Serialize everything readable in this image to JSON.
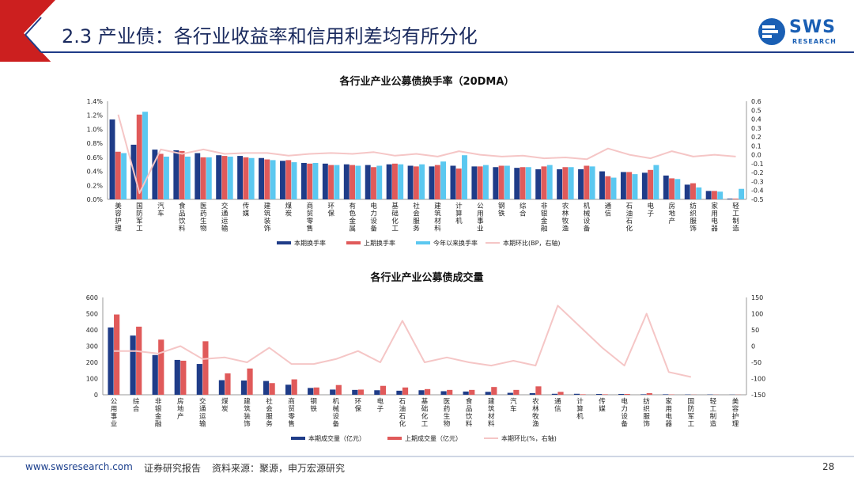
{
  "header": {
    "title": "2.3 产业债：各行业收益率和信用利差均有所分化",
    "logo_name": "SWS",
    "logo_sub": "RESEARCH"
  },
  "footer": {
    "site": "www.swsresearch.com",
    "report_type": "证券研究报告",
    "source": "资料来源：聚源，申万宏源研究",
    "page": "28"
  },
  "colors": {
    "dark_blue": "#1f3c88",
    "red": "#e05a5a",
    "light_blue": "#5bc8f0",
    "pink": "#f5c6c6",
    "title_red": "#cc1f1f"
  },
  "chart_data": [
    {
      "type": "bar",
      "title": "各行业产业公募债换手率（20DMA）",
      "categories": [
        "美容护理",
        "国防军工",
        "汽车",
        "食品饮料",
        "医药生物",
        "交通运输",
        "传媒",
        "建筑装饰",
        "煤炭",
        "商贸零售",
        "环保",
        "有色金属",
        "电力设备",
        "基础化工",
        "社会服务",
        "建筑材料",
        "计算机",
        "公用事业",
        "钢铁",
        "综合",
        "非银金融",
        "农林牧渔",
        "机械设备",
        "通信",
        "石油石化",
        "电子",
        "房地产",
        "纺织服饰",
        "家用电器",
        "轻工制造"
      ],
      "series": [
        {
          "name": "本期换手率",
          "axis": "left",
          "values": [
            1.14,
            0.78,
            0.71,
            0.7,
            0.66,
            0.63,
            0.62,
            0.59,
            0.55,
            0.52,
            0.51,
            0.5,
            0.49,
            0.5,
            0.48,
            0.47,
            0.48,
            0.47,
            0.46,
            0.45,
            0.43,
            0.43,
            0.43,
            0.4,
            0.39,
            0.38,
            0.34,
            0.21,
            0.12,
            0.01
          ]
        },
        {
          "name": "上期换手率",
          "axis": "left",
          "values": [
            0.68,
            1.21,
            0.65,
            0.69,
            0.6,
            0.62,
            0.6,
            0.57,
            0.56,
            0.51,
            0.49,
            0.49,
            0.46,
            0.51,
            0.47,
            0.49,
            0.44,
            0.47,
            0.48,
            0.46,
            0.47,
            0.46,
            0.48,
            0.33,
            0.39,
            0.42,
            0.3,
            0.23,
            0.12,
            0.01
          ]
        },
        {
          "name": "今年以来换手率",
          "axis": "left",
          "values": [
            0.66,
            1.25,
            0.61,
            0.61,
            0.6,
            0.61,
            0.59,
            0.56,
            0.53,
            0.52,
            0.49,
            0.48,
            0.48,
            0.5,
            0.5,
            0.54,
            0.63,
            0.49,
            0.48,
            0.46,
            0.49,
            0.46,
            0.47,
            0.31,
            0.36,
            0.49,
            0.29,
            0.17,
            0.11,
            0.15
          ]
        },
        {
          "name": "本期环比(BP，右轴)",
          "axis": "right",
          "values": [
            0.45,
            -0.43,
            0.06,
            0.01,
            0.06,
            0.01,
            0.02,
            0.02,
            -0.01,
            0.01,
            0.02,
            0.01,
            0.03,
            -0.01,
            0.01,
            -0.02,
            0.04,
            0.0,
            -0.02,
            -0.01,
            -0.04,
            -0.03,
            -0.05,
            0.07,
            0.0,
            -0.04,
            0.04,
            -0.02,
            0.0,
            -0.02
          ]
        }
      ],
      "ylim_left": [
        0,
        1.4
      ],
      "ylim_right": [
        -0.5,
        0.6
      ],
      "left_ticks": [
        "0.0%",
        "0.2%",
        "0.4%",
        "0.6%",
        "0.8%",
        "1.0%",
        "1.2%",
        "1.4%"
      ],
      "right_ticks": [
        "-0.5",
        "-0.4",
        "-0.3",
        "-0.2",
        "-0.1",
        "0.0",
        "0.1",
        "0.2",
        "0.3",
        "0.4",
        "0.5",
        "0.6"
      ]
    },
    {
      "type": "bar",
      "title": "各行业产业公募债成交量",
      "categories": [
        "公用事业",
        "综合",
        "非银金融",
        "房地产",
        "交通运输",
        "煤炭",
        "建筑装饰",
        "社会服务",
        "商贸零售",
        "钢铁",
        "机械设备",
        "环保",
        "电子",
        "石油石化",
        "基础化工",
        "医药生物",
        "食品饮料",
        "建筑材料",
        "汽车",
        "农林牧渔",
        "通信",
        "计算机",
        "传媒",
        "电力设备",
        "纺织服饰",
        "家用电器",
        "国防军工",
        "轻工制造",
        "美容护理"
      ],
      "series": [
        {
          "name": "本期成交量（亿元）",
          "axis": "left",
          "values": [
            415,
            365,
            245,
            215,
            190,
            90,
            88,
            85,
            62,
            42,
            32,
            30,
            28,
            25,
            28,
            22,
            20,
            18,
            12,
            10,
            6,
            6,
            5,
            5,
            3,
            3,
            2,
            2,
            1
          ]
        },
        {
          "name": "上期成交量（亿元）",
          "axis": "left",
          "values": [
            495,
            420,
            340,
            210,
            330,
            132,
            162,
            72,
            95,
            45,
            60,
            32,
            55,
            45,
            35,
            30,
            30,
            48,
            30,
            52,
            18,
            3,
            3,
            5,
            10,
            2,
            1,
            1,
            1
          ]
        },
        {
          "name": "本期环比(%，右轴)",
          "axis": "right",
          "values": [
            -15,
            -15,
            -23,
            0,
            -40,
            -35,
            -50,
            -5,
            -55,
            -55,
            -40,
            -15,
            -50,
            78,
            -50,
            -35,
            -50,
            -60,
            -45,
            -60,
            125,
            60,
            -5,
            -60,
            100,
            -80,
            -95,
            null,
            null
          ]
        }
      ],
      "ylim_left": [
        0,
        600
      ],
      "ylim_right": [
        -150,
        150
      ],
      "left_ticks": [
        "0",
        "100",
        "200",
        "300",
        "400",
        "500",
        "600"
      ],
      "right_ticks": [
        "-150",
        "-100",
        "-50",
        "0",
        "50",
        "100",
        "150"
      ]
    }
  ]
}
